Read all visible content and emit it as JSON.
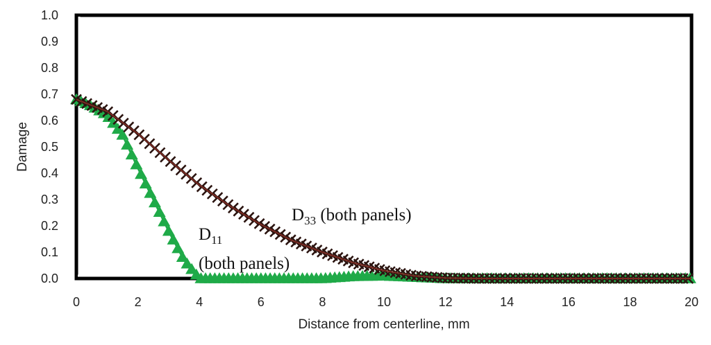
{
  "chart_data": {
    "type": "line",
    "title": "",
    "xlabel": "Distance from centerline, mm",
    "ylabel": "Damage",
    "xlim": [
      0,
      20
    ],
    "ylim": [
      0,
      1.0
    ],
    "x_ticks": [
      "0",
      "2",
      "4",
      "6",
      "8",
      "10",
      "12",
      "14",
      "16",
      "18",
      "20"
    ],
    "y_ticks": [
      "0.0",
      "0.1",
      "0.2",
      "0.3",
      "0.4",
      "0.5",
      "0.6",
      "0.7",
      "0.8",
      "0.9",
      "1.0"
    ],
    "grid": false,
    "series": [
      {
        "key": "d33",
        "color": "#2b1410",
        "line_color": "#7a2a22",
        "marker": "x",
        "x": [
          0,
          1,
          2,
          3,
          4,
          5,
          6,
          7,
          8,
          9,
          10,
          11,
          12,
          13,
          14,
          15,
          16,
          17,
          18,
          19,
          20
        ],
        "values": [
          0.68,
          0.635,
          0.55,
          0.45,
          0.355,
          0.275,
          0.205,
          0.145,
          0.1,
          0.06,
          0.03,
          0.01,
          0.002,
          0,
          0,
          0,
          0,
          0,
          0,
          0,
          0
        ]
      },
      {
        "key": "d11",
        "color": "#1faa48",
        "marker": "triangle",
        "x": [
          0,
          0.5,
          1,
          1.5,
          2,
          2.5,
          3,
          3.5,
          4,
          4.5,
          5,
          6,
          7,
          8,
          9,
          10,
          11,
          12,
          13,
          14,
          15,
          16,
          17,
          18,
          19,
          20
        ],
        "values": [
          0.68,
          0.655,
          0.62,
          0.545,
          0.42,
          0.3,
          0.18,
          0.07,
          0.0,
          0.0,
          0.0,
          0.0,
          0.0,
          0.0,
          0.008,
          0.01,
          0.005,
          0.0,
          0.0,
          0.0,
          0.0,
          0.0,
          0.0,
          0.0,
          0.0,
          0.0
        ]
      }
    ],
    "annotations": {
      "d33": {
        "main": "D",
        "sub": "33",
        "rest": " (both panels)"
      },
      "d11": {
        "main": "D",
        "sub": "11",
        "line2": "(both panels)"
      }
    }
  }
}
